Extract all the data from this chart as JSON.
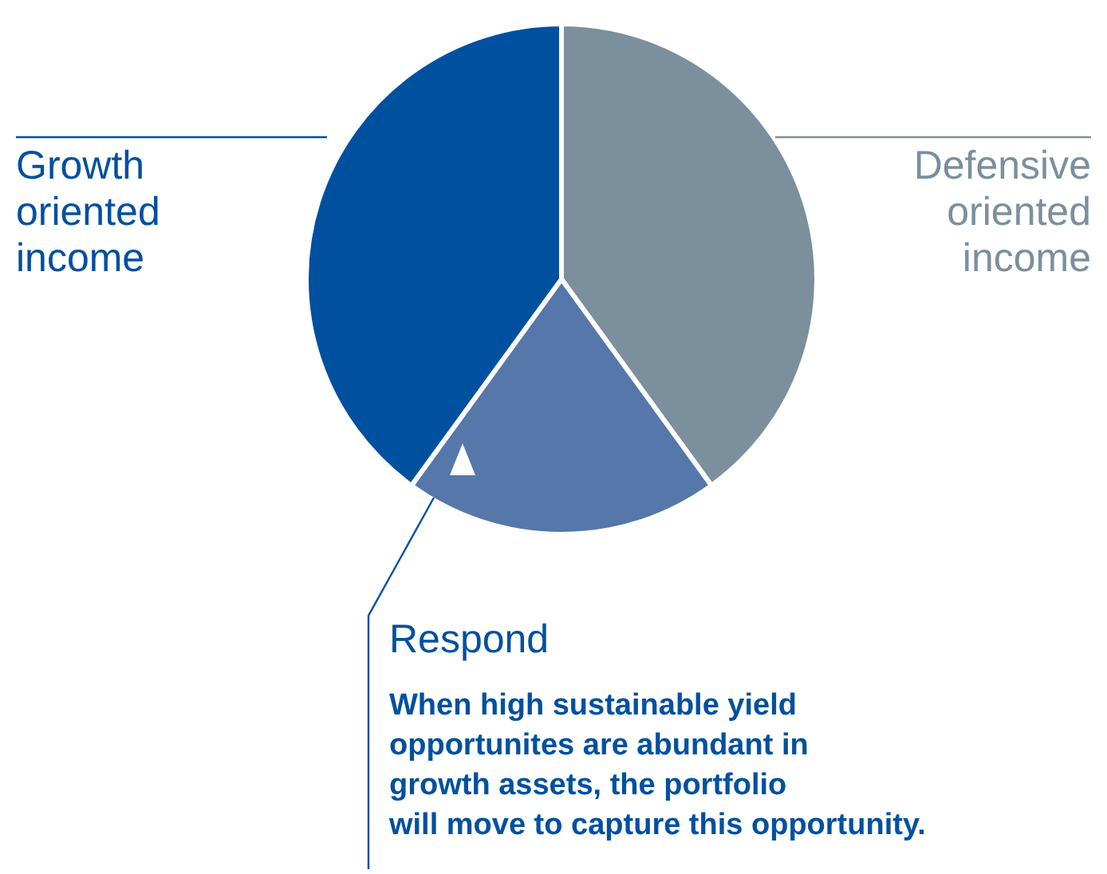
{
  "chart_data": {
    "type": "pie",
    "categories": [
      "Defensive oriented income",
      "Respond",
      "Growth oriented income"
    ],
    "values": [
      40,
      20,
      40
    ],
    "colors": [
      "#7b8f9c",
      "#5577aa",
      "#0050a0"
    ],
    "annotations": [
      "When high sustainable yield\nopportunites are abundant in\ngrowth assets, the portfolio\nwill move to capture this opportunity."
    ]
  }
}
